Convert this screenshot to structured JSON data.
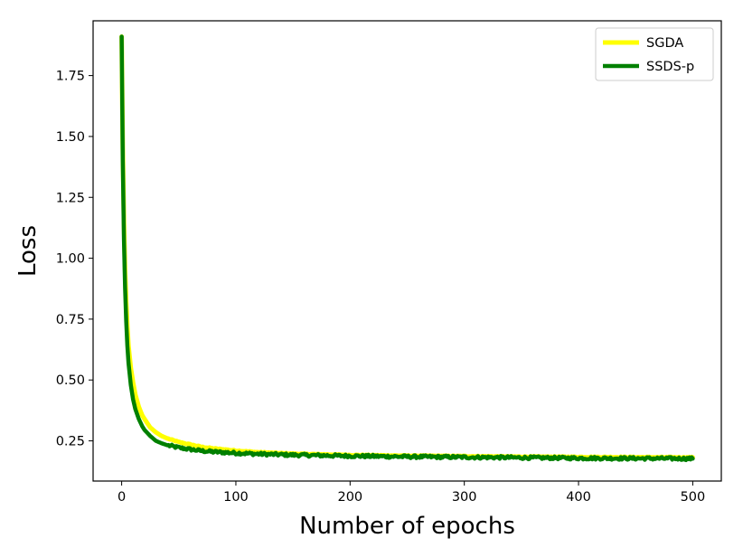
{
  "chart_data": {
    "type": "line",
    "title": "",
    "xlabel": "Number of epochs",
    "ylabel": "Loss",
    "xlim": [
      -25,
      525
    ],
    "ylim": [
      0.085,
      1.975
    ],
    "x_ticks": [
      0,
      100,
      200,
      300,
      400,
      500
    ],
    "x_tick_labels": [
      "0",
      "100",
      "200",
      "300",
      "400",
      "500"
    ],
    "y_ticks": [
      0.25,
      0.5,
      0.75,
      1.0,
      1.25,
      1.5,
      1.75
    ],
    "y_tick_labels": [
      "0.25",
      "0.50",
      "0.75",
      "1.00",
      "1.25",
      "1.50",
      "1.75"
    ],
    "grid": false,
    "legend": {
      "position": "top-right"
    },
    "x": [
      0,
      1,
      2,
      3,
      4,
      5,
      6,
      8,
      10,
      12,
      15,
      18,
      20,
      25,
      30,
      35,
      40,
      50,
      60,
      70,
      80,
      100,
      120,
      150,
      200,
      250,
      300,
      350,
      400,
      450,
      500
    ],
    "series": [
      {
        "name": "SGDA",
        "color": "#ffff00",
        "values": [
          1.91,
          1.45,
          1.15,
          0.95,
          0.82,
          0.72,
          0.64,
          0.55,
          0.49,
          0.44,
          0.39,
          0.355,
          0.34,
          0.305,
          0.285,
          0.27,
          0.26,
          0.245,
          0.235,
          0.225,
          0.219,
          0.21,
          0.203,
          0.197,
          0.192,
          0.189,
          0.187,
          0.185,
          0.184,
          0.183,
          0.182
        ]
      },
      {
        "name": "SSDS-p",
        "color": "#008000",
        "values": [
          1.91,
          1.4,
          1.08,
          0.88,
          0.74,
          0.64,
          0.57,
          0.48,
          0.42,
          0.38,
          0.34,
          0.31,
          0.295,
          0.27,
          0.25,
          0.24,
          0.232,
          0.222,
          0.215,
          0.209,
          0.205,
          0.2,
          0.196,
          0.192,
          0.188,
          0.185,
          0.183,
          0.181,
          0.179,
          0.178,
          0.177
        ]
      }
    ]
  }
}
